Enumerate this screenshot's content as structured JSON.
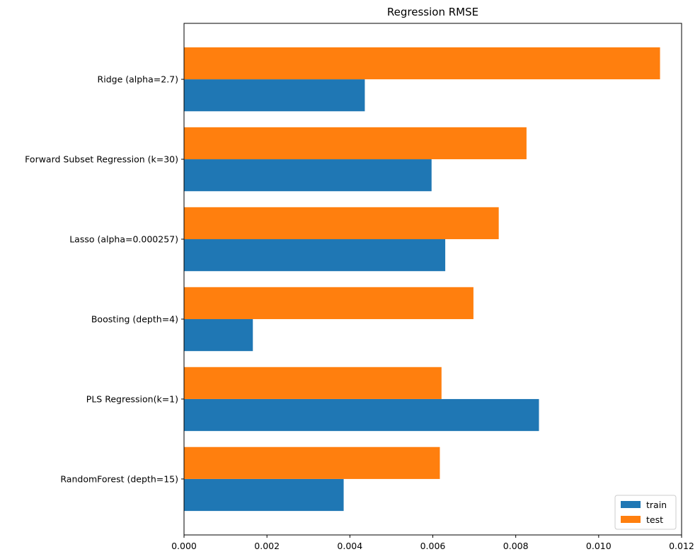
{
  "chart_data": {
    "type": "bar",
    "orientation": "horizontal",
    "title": "Regression RMSE",
    "xlabel": "",
    "ylabel": "",
    "categories": [
      "RandomForest (depth=15)",
      "PLS Regression(k=1)",
      "Boosting (depth=4)",
      "Lasso (alpha=0.000257)",
      "Forward Subset Regression (k=30)",
      "Ridge (alpha=2.7)"
    ],
    "series": [
      {
        "name": "train",
        "color": "#1f77b4",
        "values": [
          0.00385,
          0.00856,
          0.00166,
          0.0063,
          0.00597,
          0.00436
        ]
      },
      {
        "name": "test",
        "color": "#ff7f0e",
        "values": [
          0.00617,
          0.00621,
          0.00698,
          0.00759,
          0.00826,
          0.01148
        ]
      }
    ],
    "xlim": [
      0.0,
      0.012
    ],
    "xticks": [
      "0.000",
      "0.002",
      "0.004",
      "0.006",
      "0.008",
      "0.010",
      "0.012"
    ],
    "grid": false,
    "legend_position": "lower-right"
  }
}
